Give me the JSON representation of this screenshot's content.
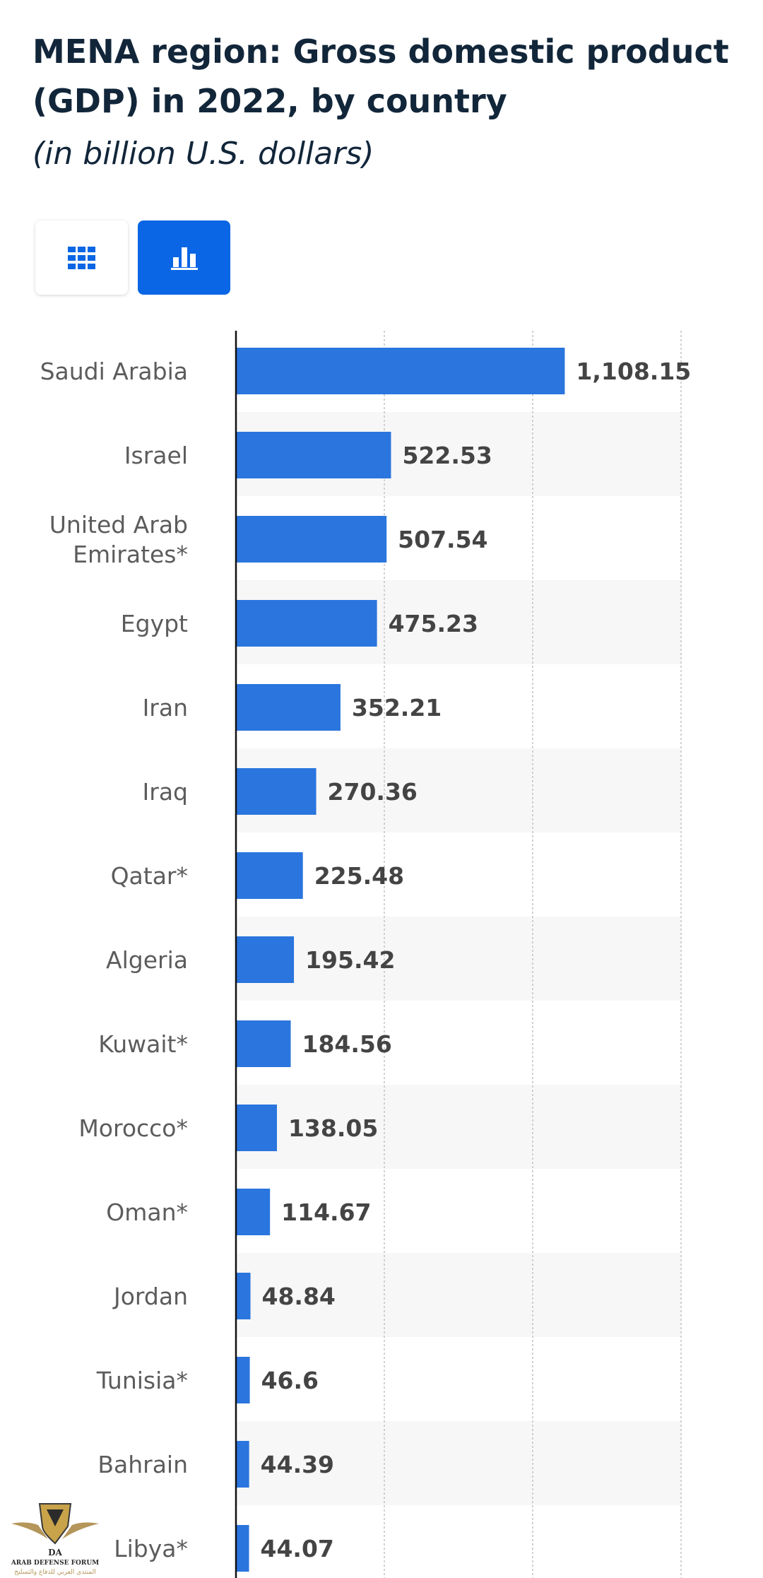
{
  "header": {
    "title": "MENA region: Gross domestic product (GDP) in 2022, by country",
    "subtitle": "(in billion U.S. dollars)"
  },
  "view_toggle": {
    "table_icon": "grid-icon",
    "chart_icon": "bar-chart-icon",
    "active": "chart",
    "active_color": "#0a66e4"
  },
  "chart_data": {
    "type": "bar",
    "orientation": "horizontal",
    "title": "MENA region: Gross domestic product (GDP) in 2022, by country",
    "subtitle": "(in billion U.S. dollars)",
    "categories": [
      [
        "Saudi Arabia"
      ],
      [
        "Israel"
      ],
      [
        "United Arab",
        "Emirates*"
      ],
      [
        "Egypt"
      ],
      [
        "Iran"
      ],
      [
        "Iraq"
      ],
      [
        "Qatar*"
      ],
      [
        "Algeria"
      ],
      [
        "Kuwait*"
      ],
      [
        "Morocco*"
      ],
      [
        "Oman*"
      ],
      [
        "Jordan"
      ],
      [
        "Tunisia*"
      ],
      [
        "Bahrain"
      ],
      [
        "Libya*"
      ]
    ],
    "values": [
      1108.15,
      522.53,
      507.54,
      475.23,
      352.21,
      270.36,
      225.48,
      195.42,
      184.56,
      138.05,
      114.67,
      48.84,
      46.6,
      44.39,
      44.07
    ],
    "value_labels": [
      "1,108.15",
      "522.53",
      "507.54",
      "475.23",
      "352.21",
      "270.36",
      "225.48",
      "195.42",
      "184.56",
      "138.05",
      "114.67",
      "48.84",
      "46.6",
      "44.39",
      "44.07"
    ],
    "xlim": [
      0,
      1500
    ],
    "gridlines": [
      500,
      1000,
      1500
    ],
    "grid": true,
    "bar_color": "#2a75de",
    "stripe_color": "#f7f7f7"
  },
  "watermark": {
    "name": "ARAB DEFENSE FORUM",
    "arabic": "المنتدى العربي للدفاع والتسليح",
    "initials": "DA"
  }
}
